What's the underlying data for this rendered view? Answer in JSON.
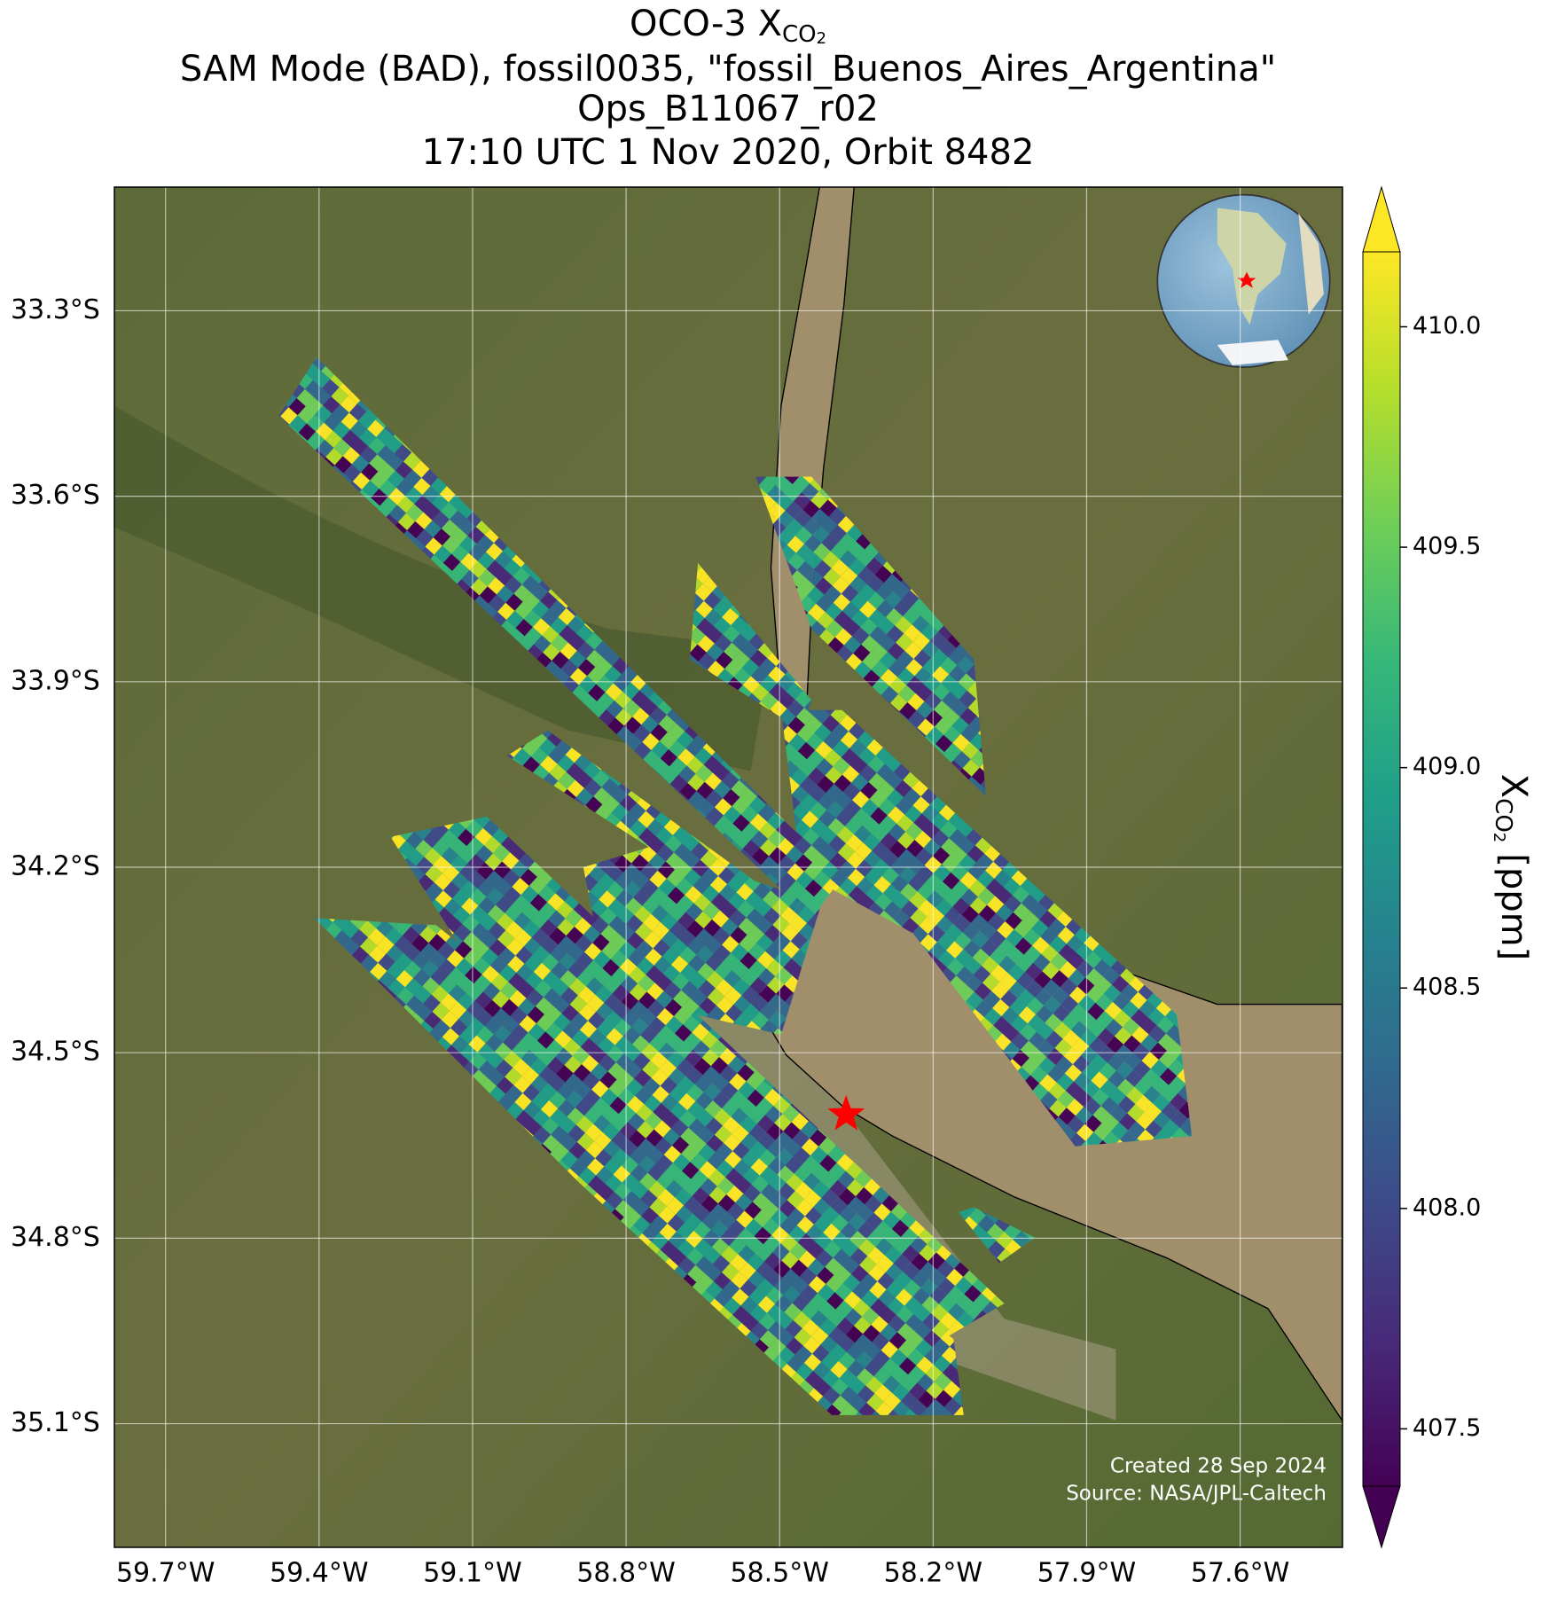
{
  "chart_data": {
    "type": "map",
    "title_lines": [
      "OCO-3 X",
      "SAM Mode (BAD), fossil0035, \"fossil_Buenos_Aires_Argentina\"",
      "Ops_B11067_r02",
      "17:10 UTC 1 Nov 2020, Orbit 8482"
    ],
    "title_subscript": [
      "CO",
      "2"
    ],
    "xlim": [
      -59.8,
      -57.4
    ],
    "ylim": [
      -35.3,
      -33.1
    ],
    "xticks": [
      {
        "value": -59.7,
        "label": "59.7°W"
      },
      {
        "value": -59.4,
        "label": "59.4°W"
      },
      {
        "value": -59.1,
        "label": "59.1°W"
      },
      {
        "value": -58.8,
        "label": "58.8°W"
      },
      {
        "value": -58.5,
        "label": "58.5°W"
      },
      {
        "value": -58.2,
        "label": "58.2°W"
      },
      {
        "value": -57.9,
        "label": "57.9°W"
      },
      {
        "value": -57.6,
        "label": "57.6°W"
      }
    ],
    "yticks": [
      {
        "value": -33.3,
        "label": "33.3°S"
      },
      {
        "value": -33.6,
        "label": "33.6°S"
      },
      {
        "value": -33.9,
        "label": "33.9°S"
      },
      {
        "value": -34.2,
        "label": "34.2°S"
      },
      {
        "value": -34.5,
        "label": "34.5°S"
      },
      {
        "value": -34.8,
        "label": "34.8°S"
      },
      {
        "value": -35.1,
        "label": "35.1°S"
      }
    ],
    "grid": true,
    "target": {
      "lon": -58.37,
      "lat": -34.6,
      "color": "#ff0000"
    },
    "colormap": "viridis",
    "clim": [
      407.37,
      410.17
    ],
    "colorbar_ticks": [
      407.5,
      {
        "value": 408,
        "label": "408.0"
      },
      408.5,
      {
        "value": 409,
        "label": "409.0"
      },
      409.5,
      {
        "value": 410,
        "label": "410.0"
      }
    ],
    "colorbar_label": {
      "symbol": "X",
      "subscript": [
        "CO",
        "2"
      ],
      "unit": "[ppm]"
    },
    "annotations": [
      "Created 28 Sep 2024",
      "Source: NASA/JPL-Caltech"
    ]
  }
}
